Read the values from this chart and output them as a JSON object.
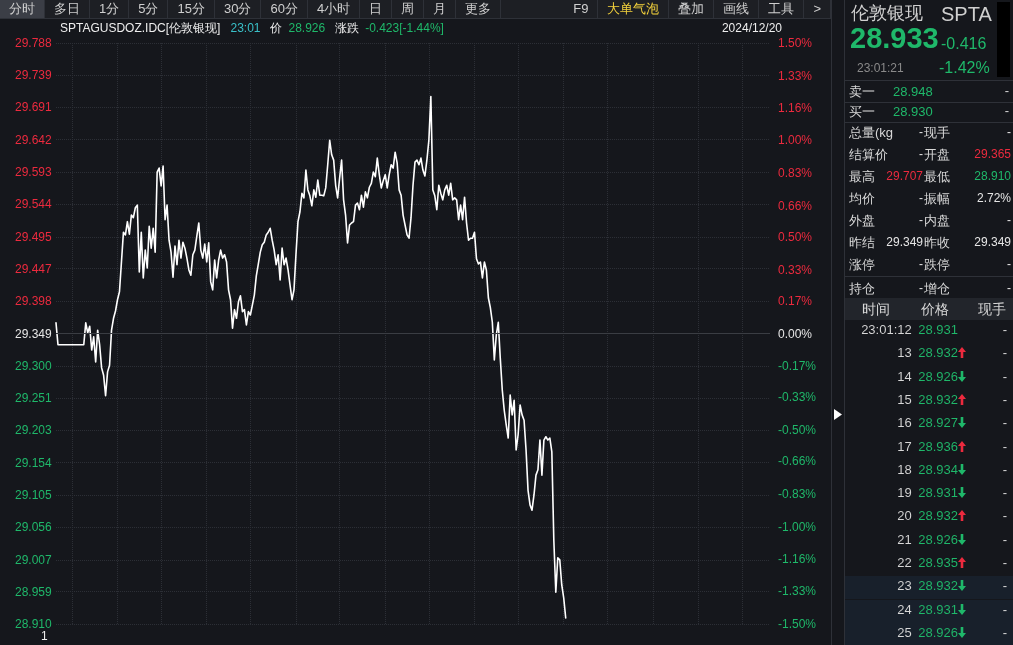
{
  "chart_data": [
    {
      "type": "other",
      "annotations": [
        "分时",
        "多日",
        "1分",
        "5分",
        "15分",
        "30分",
        "60分",
        "4小时",
        "日",
        "周",
        "月",
        "更多",
        "F9",
        "大单气泡",
        "叠加",
        "画线",
        "工具",
        ">"
      ]
    },
    {
      "type": "line",
      "title": "SPTAGUSDOZ.IDC[伦敦银现]",
      "annotations": [
        "23:01",
        "价",
        "28.926",
        "涨跌",
        "-0.423[-1.44%]",
        "2024/12/20",
        "1"
      ],
      "categories": [
        null,
        null,
        null,
        null,
        null,
        null,
        null,
        null,
        null,
        null,
        null,
        null,
        null,
        null,
        null,
        null,
        null,
        null,
        null,
        null,
        null,
        null,
        null,
        null,
        null,
        null,
        null,
        null,
        null,
        null,
        null,
        null,
        null,
        null,
        null,
        null,
        null,
        null,
        null,
        null,
        null,
        null,
        null,
        null,
        null,
        null,
        null,
        null,
        null,
        null,
        null,
        null,
        null,
        null,
        null,
        null,
        null,
        null,
        null,
        null,
        null,
        null,
        null,
        null,
        null,
        null,
        null,
        null,
        null,
        null,
        null,
        null,
        null,
        null,
        null,
        null,
        null,
        null,
        null,
        null,
        null,
        null,
        null,
        null,
        null,
        null,
        null,
        null,
        null,
        null,
        null,
        null,
        null,
        null,
        null,
        null,
        null,
        null,
        null,
        null,
        null,
        null,
        null,
        null,
        null,
        null,
        null,
        null,
        null,
        null,
        null,
        null,
        null,
        null,
        null,
        null,
        null,
        null,
        null,
        null,
        null,
        null,
        null,
        null,
        null,
        null,
        null,
        null,
        null,
        null,
        null,
        null,
        null,
        null,
        null,
        null,
        null,
        null,
        null,
        null,
        null,
        null,
        null,
        null,
        null,
        null,
        null,
        null,
        null,
        null,
        null,
        null,
        null,
        null,
        null,
        null,
        null,
        null,
        null,
        null,
        null,
        null,
        null,
        null,
        null,
        null,
        null,
        null,
        null,
        null,
        null,
        null,
        null,
        null,
        null,
        null,
        null,
        null,
        null,
        null,
        null,
        null,
        null,
        null,
        null,
        null,
        null,
        null,
        null,
        null,
        null,
        null,
        null,
        null,
        null,
        null,
        null,
        null,
        null,
        null,
        null,
        null,
        null,
        null,
        null,
        null,
        null,
        null,
        null,
        null,
        null,
        null,
        null,
        null,
        null,
        null,
        null,
        null,
        null,
        null,
        null,
        null,
        null,
        null,
        null,
        null,
        null,
        null,
        null,
        null,
        null,
        null,
        null,
        null,
        null,
        null,
        null,
        null,
        null,
        null,
        null,
        null,
        null,
        null,
        null,
        null,
        null,
        null,
        null,
        null,
        null,
        null,
        null,
        null,
        null,
        null,
        null,
        null,
        null,
        null,
        null,
        null,
        null,
        null,
        null,
        null,
        null,
        null,
        null,
        null,
        null,
        null,
        null,
        null,
        null,
        null,
        null,
        null,
        null,
        null,
        null,
        null,
        null,
        null,
        null,
        null,
        null,
        null,
        null,
        null,
        null,
        null,
        null,
        null,
        null,
        null,
        null,
        null,
        null,
        null,
        null,
        null,
        null,
        null,
        null,
        null,
        null,
        null,
        null,
        null,
        null,
        null,
        null,
        null,
        null,
        null,
        null,
        null,
        null,
        null,
        null,
        null,
        null,
        null,
        null,
        null,
        null,
        null,
        null,
        null,
        null,
        null,
        null,
        null,
        null,
        null,
        null,
        null,
        null,
        null,
        null,
        null,
        null,
        null,
        null,
        null,
        null,
        null,
        null,
        null,
        null,
        null,
        null,
        null,
        null,
        null,
        null,
        null,
        null,
        null,
        null
      ],
      "series": [
        {
          "color": "#ffffff",
          "values": [
            29.365,
            29.332,
            29.332,
            29.332,
            29.332,
            29.332,
            29.332,
            29.332,
            29.332,
            29.332,
            29.332,
            29.332,
            29.332,
            29.332,
            29.332,
            29.365,
            29.35,
            29.36,
            29.324,
            29.344,
            29.306,
            29.354,
            29.332,
            29.297,
            29.286,
            29.255,
            29.291,
            29.301,
            29.354,
            29.372,
            29.383,
            29.4,
            29.412,
            29.457,
            29.502,
            29.498,
            29.518,
            29.499,
            29.528,
            29.524,
            29.539,
            29.543,
            29.442,
            29.502,
            29.433,
            29.475,
            29.448,
            29.511,
            29.478,
            29.508,
            29.472,
            29.593,
            29.599,
            29.572,
            29.602,
            29.521,
            29.543,
            29.49,
            29.472,
            29.434,
            29.481,
            29.453,
            29.49,
            29.463,
            29.487,
            29.478,
            29.463,
            29.445,
            29.437,
            29.468,
            29.475,
            29.496,
            29.516,
            29.475,
            29.463,
            29.484,
            29.457,
            29.486,
            29.427,
            29.415,
            29.46,
            29.433,
            29.46,
            29.475,
            29.463,
            29.468,
            29.457,
            29.415,
            29.4,
            29.357,
            29.385,
            29.372,
            29.397,
            29.406,
            29.382,
            29.385,
            29.362,
            29.382,
            29.377,
            29.392,
            29.407,
            29.436,
            29.454,
            29.472,
            29.483,
            29.487,
            29.498,
            29.502,
            29.508,
            29.49,
            29.475,
            29.453,
            29.468,
            29.43,
            29.478,
            29.453,
            29.463,
            29.445,
            29.422,
            29.4,
            29.415,
            29.469,
            29.518,
            29.533,
            29.561,
            29.554,
            29.596,
            29.566,
            29.557,
            29.542,
            29.566,
            29.555,
            29.581,
            29.558,
            29.558,
            29.557,
            29.569,
            29.604,
            29.641,
            29.619,
            29.611,
            29.573,
            29.554,
            29.584,
            29.611,
            29.551,
            29.528,
            29.486,
            29.513,
            29.516,
            29.518,
            29.543,
            29.546,
            29.536,
            29.558,
            29.54,
            29.563,
            29.554,
            29.57,
            29.576,
            29.593,
            29.586,
            29.614,
            29.589,
            29.569,
            29.58,
            29.589,
            29.569,
            29.589,
            29.604,
            29.599,
            29.623,
            29.607,
            29.566,
            29.558,
            29.528,
            29.513,
            29.498,
            29.493,
            29.524,
            29.573,
            29.608,
            29.611,
            29.604,
            29.614,
            29.596,
            29.587,
            29.611,
            29.641,
            29.707,
            29.566,
            29.557,
            29.536,
            29.573,
            29.561,
            29.551,
            29.566,
            29.573,
            29.558,
            29.576,
            29.551,
            29.554,
            29.551,
            29.521,
            29.543,
            29.521,
            29.555,
            29.516,
            29.49,
            29.493,
            29.493,
            29.502,
            29.462,
            29.454,
            29.457,
            29.433,
            29.457,
            29.445,
            29.403,
            29.388,
            29.366,
            29.309,
            29.347,
            29.366,
            29.312,
            29.264,
            29.233,
            29.211,
            29.191,
            29.256,
            29.226,
            29.248,
            29.173,
            29.196,
            29.241,
            29.226,
            29.218,
            29.173,
            29.112,
            29.09,
            29.082,
            29.105,
            29.135,
            29.143,
            29.188,
            29.135,
            29.188,
            29.193,
            29.188,
            29.191,
            29.17,
            29.037,
            28.958,
            29.01,
            29.007,
            28.969,
            28.949,
            28.919,
            null,
            null,
            null,
            null,
            null,
            null,
            null,
            null,
            null,
            null,
            null,
            null,
            null,
            null,
            null,
            null,
            null,
            null,
            null,
            null,
            null,
            null,
            null,
            null,
            null,
            null,
            null,
            null,
            null,
            null,
            null,
            null,
            null,
            null,
            null,
            null,
            null,
            null,
            null,
            null,
            null,
            null,
            null,
            null,
            null,
            null,
            null,
            null,
            null,
            null,
            null,
            null,
            null,
            null,
            null,
            null,
            null,
            null,
            null,
            null,
            null,
            null,
            null,
            null,
            null,
            null,
            null,
            null,
            null,
            null,
            null,
            null,
            null,
            null,
            null,
            null,
            null,
            null,
            null,
            null,
            null,
            null,
            null,
            null,
            null,
            null,
            null,
            null,
            null,
            null,
            null,
            null,
            null,
            null,
            null,
            null,
            null,
            null,
            null,
            null,
            null,
            null,
            null
          ]
        }
      ],
      "ylim": [
        28.91,
        29.788
      ],
      "yticks": [
        29.788,
        29.739,
        29.691,
        29.642,
        29.593,
        29.544,
        29.495,
        29.447,
        29.398,
        29.349,
        {
          "value": 29.3,
          "label": "29.300"
        },
        29.251,
        29.203,
        29.154,
        29.105,
        29.056,
        29.007,
        28.959,
        {
          "value": 28.91,
          "label": "28.910"
        }
      ],
      "y2lim": [
        -1.5,
        1.5
      ],
      "y2ticks": [
        {
          "value": 1.5,
          "label": "1.50%"
        },
        {
          "value": 1.33,
          "label": "1.33%"
        },
        {
          "value": 1.165,
          "label": "1.16%"
        },
        {
          "value": 1,
          "label": "1.00%"
        },
        {
          "value": 0.83,
          "label": "0.83%"
        },
        {
          "value": 0.66,
          "label": "0.66%"
        },
        {
          "value": 0.5,
          "label": "0.50%"
        },
        {
          "value": 0.33,
          "label": "0.33%"
        },
        {
          "value": 0.17,
          "label": "0.17%"
        },
        {
          "value": 0,
          "label": "0.00%"
        },
        {
          "value": -0.17,
          "label": "-0.17%"
        },
        {
          "value": -0.33,
          "label": "-0.33%"
        },
        {
          "value": -0.5,
          "label": "-0.50%"
        },
        {
          "value": -0.66,
          "label": "-0.66%"
        },
        {
          "value": -0.83,
          "label": "-0.83%"
        },
        {
          "value": -1,
          "label": "-1.00%"
        },
        {
          "value": -1.165,
          "label": "-1.16%"
        },
        {
          "value": -1.33,
          "label": "-1.33%"
        },
        {
          "value": -1.5,
          "label": "-1.50%"
        }
      ],
      "ref_lines": [
        {
          "axis": "y",
          "value": 29.349,
          "color": "#3a3d43"
        }
      ],
      "grid": true,
      "marker": "none"
    },
    {
      "type": "other",
      "annotations": [
        "伦敦银现",
        "SPTA",
        "28.933",
        "-0.416",
        "23:01:21",
        "-1.42%",
        "卖一",
        "28.948",
        "-",
        "买一",
        "28.930",
        "-",
        "总量(kg",
        "-",
        "现手",
        "-",
        "结算价",
        "-",
        "开盘",
        "29.365",
        "最高",
        "29.707",
        "最低",
        "28.910",
        "均价",
        "-",
        "振幅",
        "2.72%",
        "外盘",
        "-",
        "内盘",
        "-",
        "昨结",
        "29.349",
        "昨收",
        "29.349",
        "涨停",
        "-",
        "跌停",
        "-",
        "持仓",
        "-",
        "增仓",
        "-"
      ]
    },
    {
      "type": "other",
      "annotations": [
        "时间",
        "价格",
        "现手",
        "23:01:12",
        "28.931",
        "-",
        "13",
        "28.932",
        "-",
        "14",
        "28.926",
        "-",
        "15",
        "28.932",
        "-",
        "16",
        "28.927",
        "-",
        "17",
        "28.936",
        "-",
        "18",
        "28.934",
        "-",
        "19",
        "28.931",
        "-",
        "20",
        "28.932",
        "-",
        "21",
        "28.926",
        "-",
        "22",
        "28.935",
        "-",
        "23",
        "28.932",
        "-",
        "24",
        "28.931",
        "-",
        "25",
        "28.926",
        "-"
      ]
    }
  ]
}
